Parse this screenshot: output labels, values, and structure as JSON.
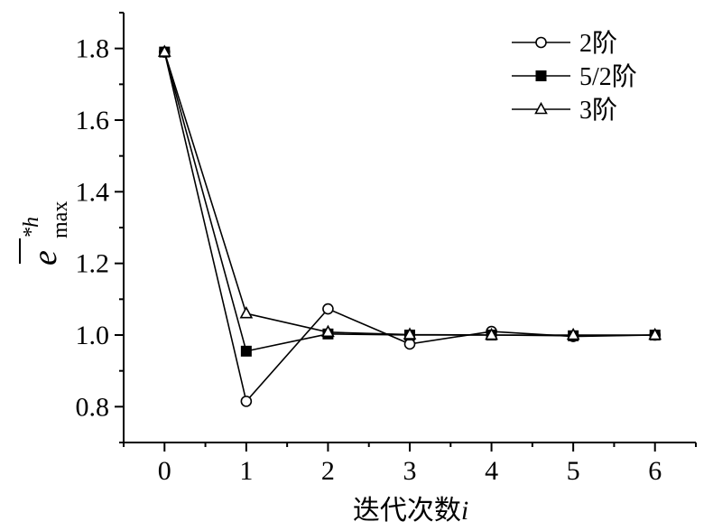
{
  "chart_data": {
    "type": "line",
    "xlabel": "迭代次数",
    "xlabel_var": "i",
    "ylabel": {
      "main": "e",
      "superscript": "*h",
      "subscript": "max"
    },
    "xlim": [
      -0.5,
      6.5
    ],
    "ylim": [
      0.7,
      1.9
    ],
    "xticks": [
      0,
      1,
      2,
      3,
      4,
      5,
      6
    ],
    "yticks": [
      0.8,
      1.0,
      1.2,
      1.4,
      1.6,
      1.8
    ],
    "ytick_labels": [
      "0.8",
      "1.0",
      "1.2",
      "1.4",
      "1.6",
      "1.8"
    ],
    "x": [
      0,
      1,
      2,
      3,
      4,
      5,
      6
    ],
    "grid": false,
    "legend_position": "top-right",
    "series": [
      {
        "name": "2阶",
        "marker": "circle-open",
        "values": [
          1.79,
          0.815,
          1.073,
          0.975,
          1.01,
          0.996,
          1.0
        ]
      },
      {
        "name": "5/2阶",
        "marker": "square-filled",
        "values": [
          1.79,
          0.955,
          1.003,
          1.0,
          1.0,
          0.998,
          1.0
        ]
      },
      {
        "name": "3阶",
        "marker": "triangle-open",
        "values": [
          1.79,
          1.06,
          1.008,
          1.001,
          1.0,
          1.0,
          1.0
        ]
      }
    ]
  }
}
